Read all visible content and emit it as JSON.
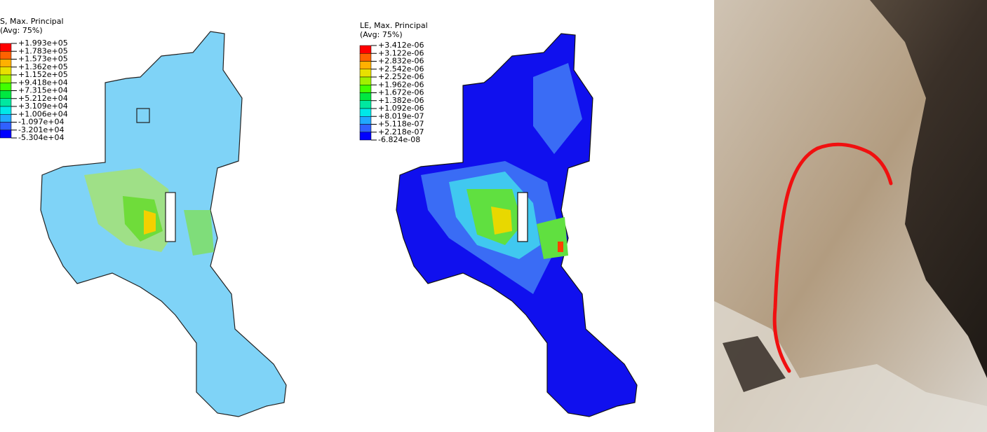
{
  "legends": [
    {
      "title": "S, Max. Principal",
      "subtitle": "(Avg: 75%)",
      "labels": [
        "+1.993e+05",
        "+1.783e+05",
        "+1.573e+05",
        "+1.362e+05",
        "+1.152e+05",
        "+9.418e+04",
        "+7.315e+04",
        "+5.212e+04",
        "+3.109e+04",
        "+1.006e+04",
        "-1.097e+04",
        "-3.201e+04",
        "-5.304e+04"
      ]
    },
    {
      "title": "LE, Max. Principal",
      "subtitle": "(Avg: 75%)",
      "labels": [
        "+3.412e-06",
        "+3.122e-06",
        "+2.832e-06",
        "+2.542e-06",
        "+2.252e-06",
        "+1.962e-06",
        "+1.672e-06",
        "+1.382e-06",
        "+1.092e-06",
        "+8.019e-07",
        "+5.118e-07",
        "+2.218e-07",
        "-6.824e-08"
      ]
    }
  ]
}
